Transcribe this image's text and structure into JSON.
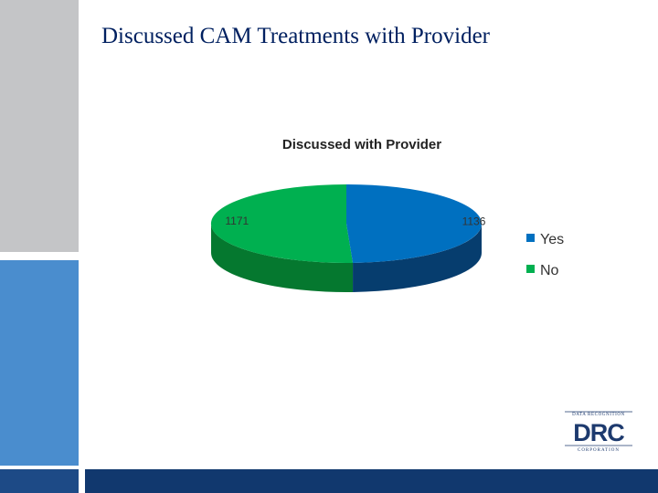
{
  "slide": {
    "title": "Discussed CAM Treatments with Provider"
  },
  "logo": {
    "top_text": "DATA RECOGNITION",
    "mark": "DRC",
    "bottom_text": "CORPORATION"
  },
  "colors": {
    "yes": "#0070c0",
    "yes_dark": "#063d6e",
    "no": "#00b050",
    "no_dark": "#05782f",
    "title": "#002060",
    "brand_blue": "#11386e"
  },
  "chart_data": {
    "type": "pie",
    "title": "Discussed with Provider",
    "categories": [
      "Yes",
      "No"
    ],
    "values": [
      1136,
      1171
    ],
    "data_labels": [
      "1136",
      "1171"
    ],
    "legend": "right",
    "style": "3d"
  }
}
